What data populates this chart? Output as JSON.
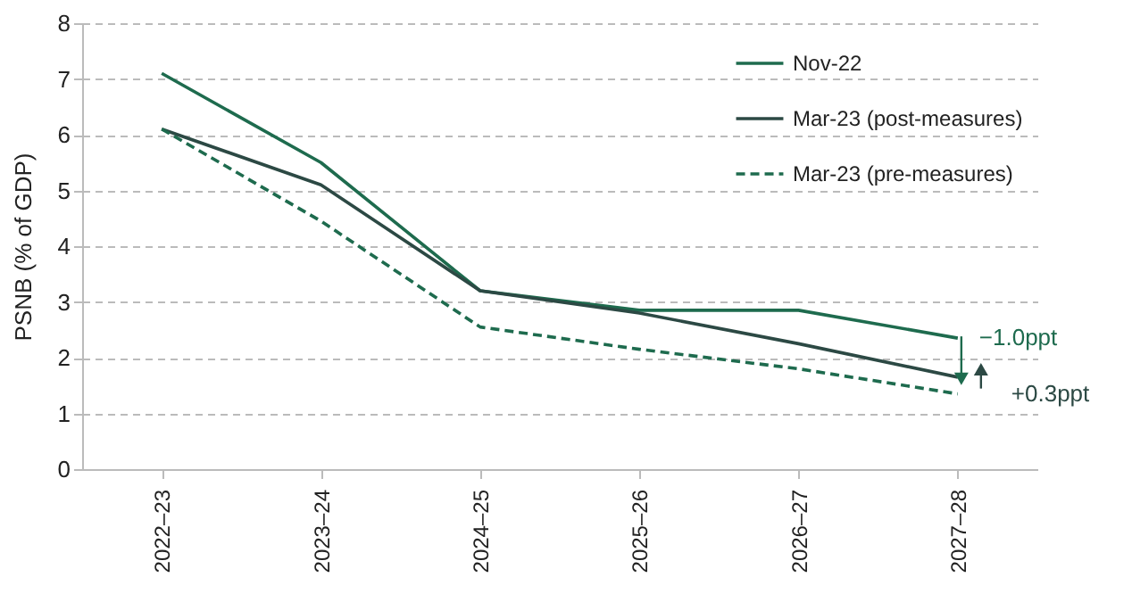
{
  "chart_data": {
    "type": "line",
    "ylabel": "PSNB (% of GDP)",
    "categories": [
      "2022–23",
      "2023–24",
      "2024–25",
      "2025–26",
      "2026–27",
      "2027–28"
    ],
    "series": [
      {
        "name": "Nov-22",
        "color": "#1e6b4e",
        "line_style": "solid",
        "values": [
          7.1,
          5.5,
          3.2,
          2.85,
          2.85,
          2.35
        ]
      },
      {
        "name": "Mar-23 (post-measures)",
        "color": "#2c4944",
        "line_style": "solid",
        "values": [
          6.1,
          5.1,
          3.2,
          2.8,
          2.25,
          1.65
        ]
      },
      {
        "name": "Mar-23 (pre-measures)",
        "color": "#1e6b4e",
        "line_style": "dashed",
        "values": [
          6.1,
          4.45,
          2.55,
          2.15,
          1.8,
          1.35
        ]
      }
    ],
    "ylim": [
      0,
      8
    ],
    "yticks": [
      0,
      1,
      2,
      3,
      4,
      5,
      6,
      7,
      8
    ],
    "grid": "y",
    "legend": "top right",
    "marker": "none",
    "annotations": [
      {
        "text": "−1.0ppt",
        "x": "2027–28",
        "y": 2.35
      },
      {
        "text": "+0.3ppt",
        "x": "2027–28",
        "y": 1.35
      }
    ]
  }
}
